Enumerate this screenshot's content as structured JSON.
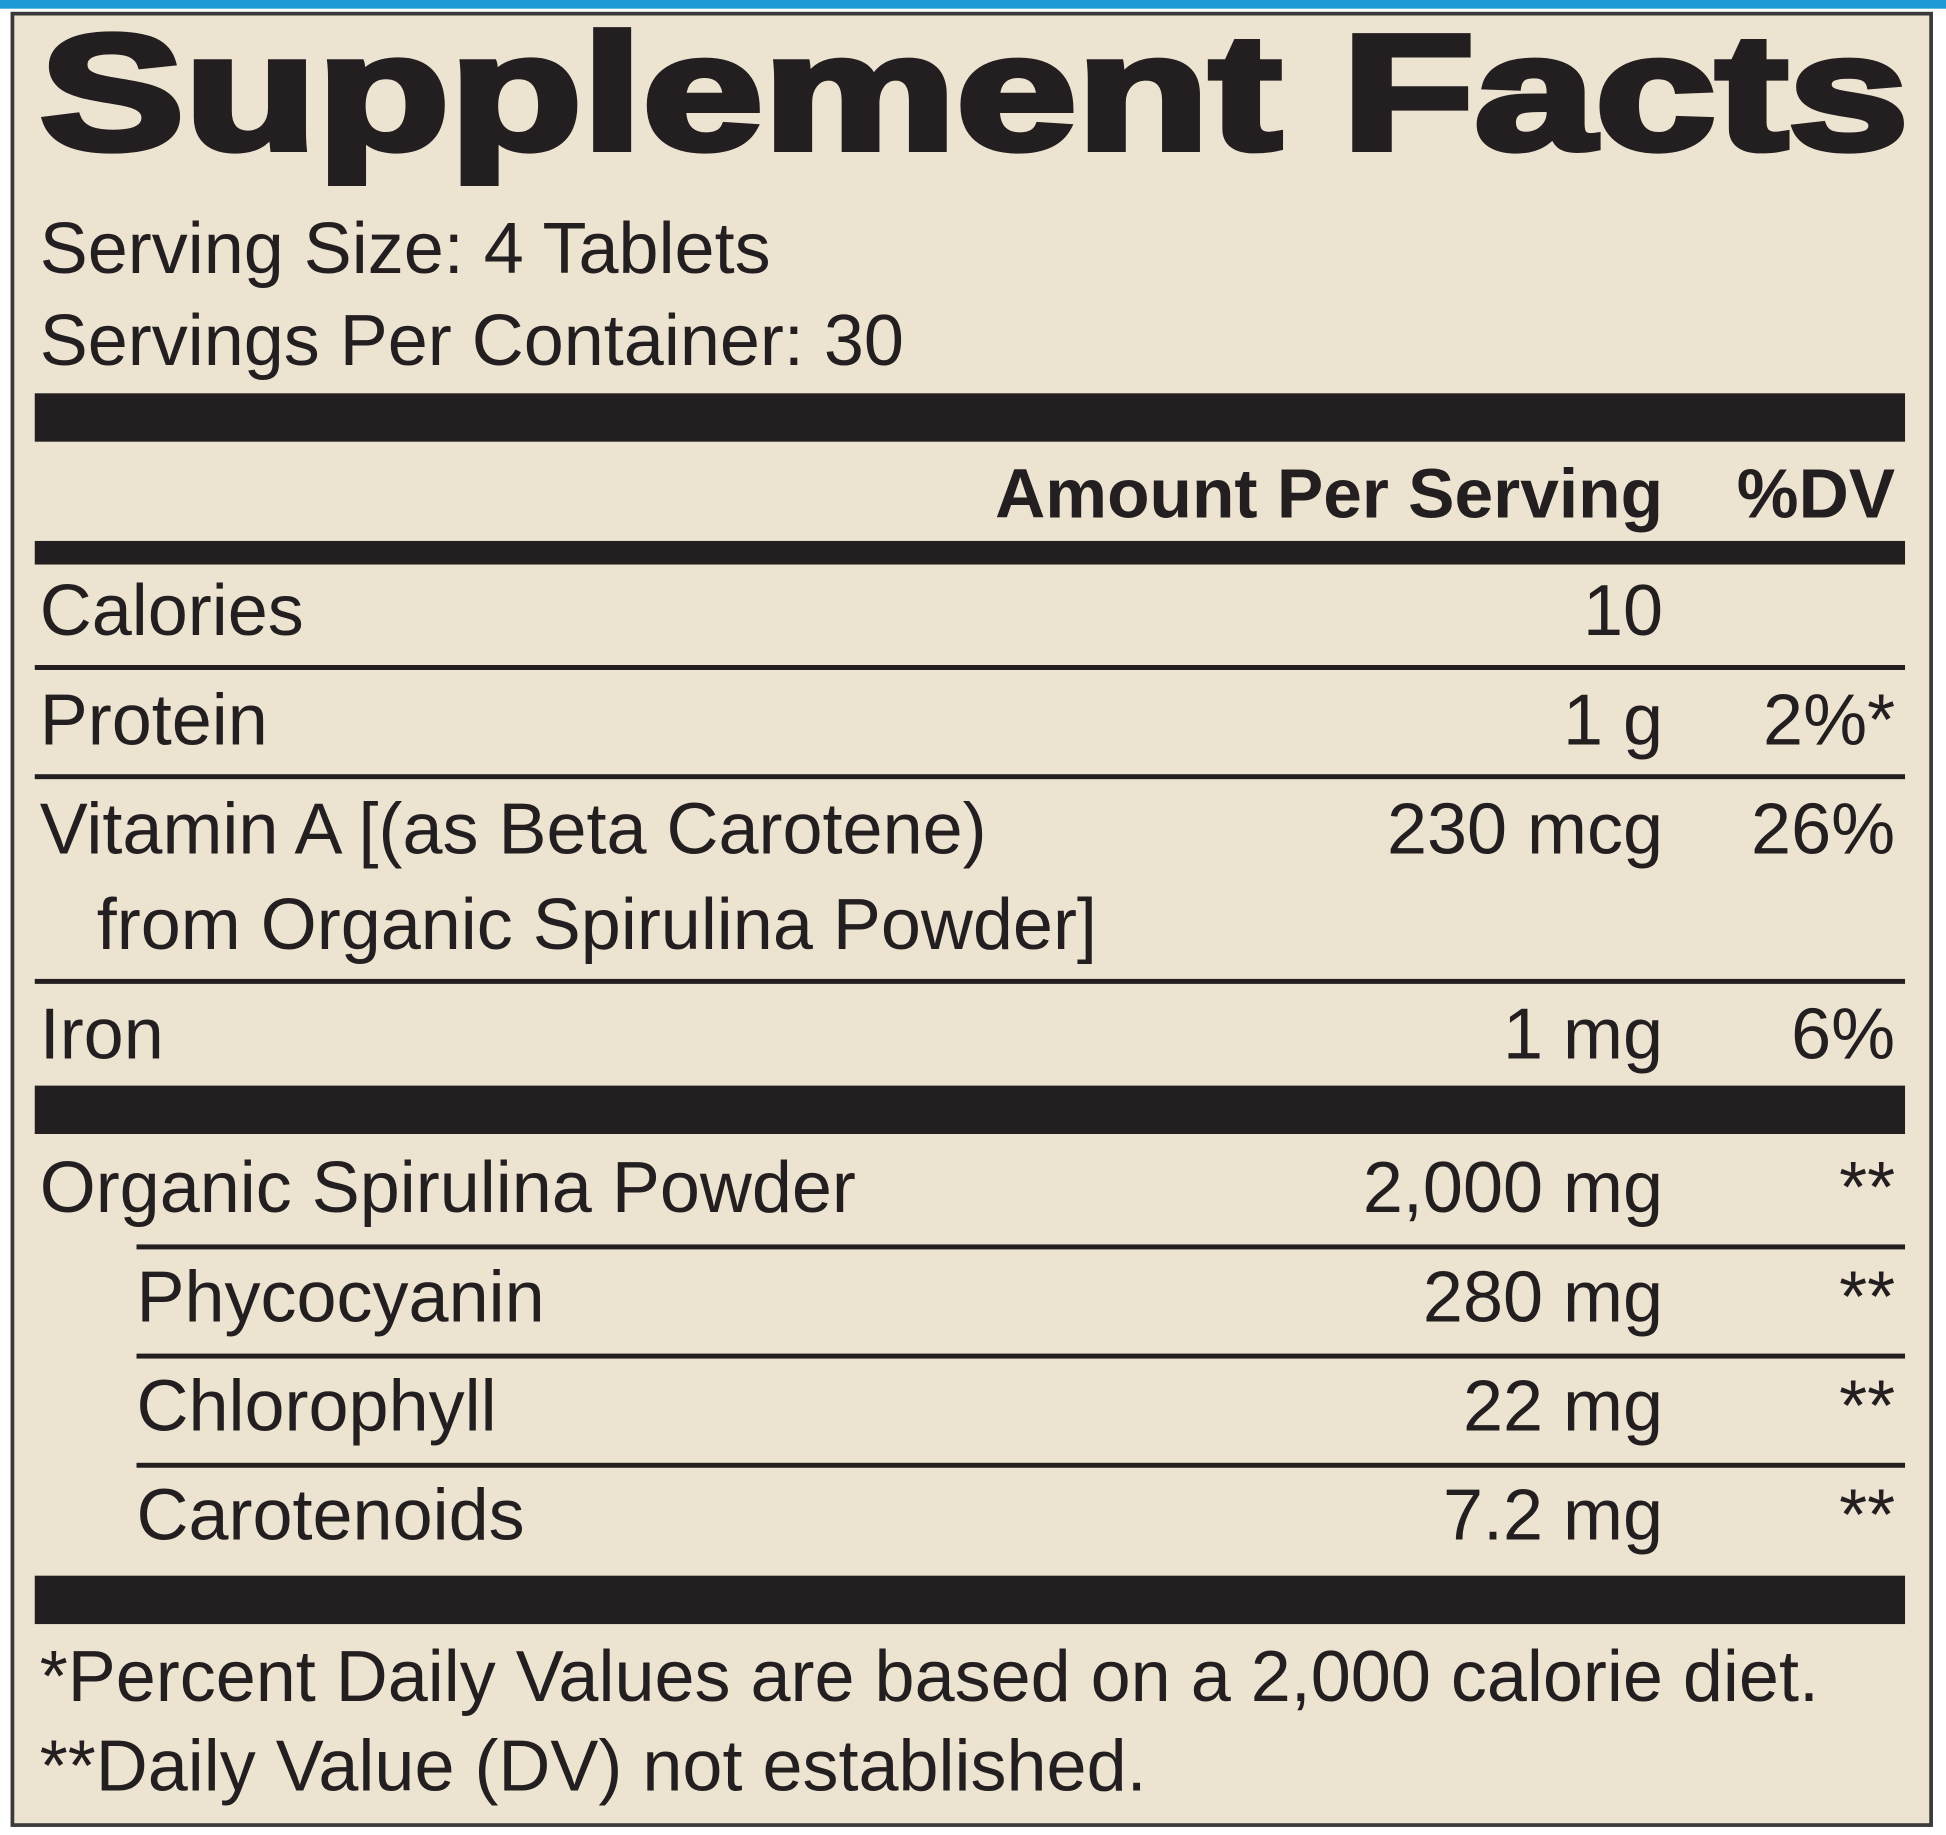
{
  "title": "Supplement Facts",
  "serving_size": "Serving Size: 4 Tablets",
  "servings_per_container": "Servings Per Container: 30",
  "header": {
    "amount": "Amount Per Serving",
    "dv": "%DV"
  },
  "rows": [
    {
      "name": "Calories",
      "amount": "10"
    },
    {
      "name": "Protein",
      "amount": "1 g",
      "dv": "2%*"
    },
    {
      "name": [
        "Vitamin A [(as Beta Carotene)",
        "from Organic Spirulina Powder]"
      ],
      "amount": "230 mcg",
      "dv": "26%"
    },
    {
      "name": "Iron",
      "amount": "1 mg",
      "dv": "6%"
    }
  ],
  "ingredients": [
    {
      "name": "Organic Spirulina Powder",
      "amount": "2,000 mg",
      "dv": "**",
      "components": [
        {
          "name": "Phycocyanin",
          "amount": "280 mg",
          "dv": "**"
        },
        {
          "name": "Chlorophyll",
          "amount": "22 mg",
          "dv": "**"
        },
        {
          "name": "Carotenoids",
          "amount": "7.2 mg",
          "dv": "**"
        }
      ]
    }
  ],
  "footnotes": [
    "*Percent Daily Values are based on a 2,000 calorie diet.",
    "**Daily Value (DV) not established."
  ]
}
